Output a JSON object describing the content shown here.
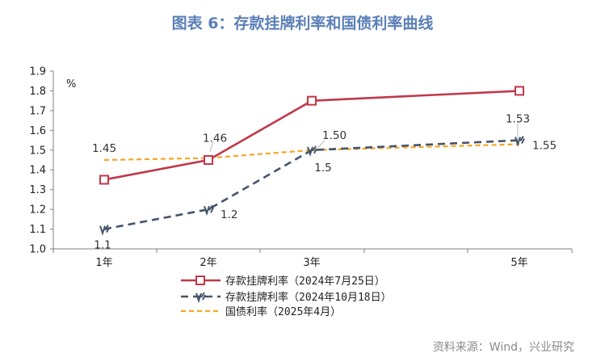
{
  "title": "图表 6：存款挂牌利率和国债利率曲线",
  "source": "资料来源：Wind，兴业研究",
  "colors": {
    "title": "#5b7fb6",
    "series_red": "#c0394b",
    "series_navy": "#44546a",
    "series_orange": "#f5a623"
  },
  "chart_data": {
    "type": "line",
    "unit_label": "%",
    "categories": [
      "1年",
      "2年",
      "3年",
      "5年"
    ],
    "x": [
      1,
      2,
      3,
      5
    ],
    "ylim": [
      1.0,
      1.9
    ],
    "yticks": [
      "1.0",
      "1.1",
      "1.2",
      "1.3",
      "1.4",
      "1.5",
      "1.6",
      "1.7",
      "1.8",
      "1.9"
    ],
    "grid": false,
    "legend_position": "bottom",
    "series": [
      {
        "name": "存款挂牌利率（2024年7月25日）",
        "values": [
          1.35,
          1.45,
          1.75,
          1.8
        ],
        "labels": []
      },
      {
        "name": "存款挂牌利率（2024年10月18日）",
        "values": [
          1.1,
          1.2,
          1.5,
          1.55
        ],
        "labels": [
          "1.1",
          "1.2",
          "1.5",
          "1.55"
        ]
      },
      {
        "name": "国债利率（2025年4月）",
        "values": [
          1.45,
          1.46,
          1.5,
          1.53
        ],
        "labels": [
          "1.45",
          "1.46",
          "1.50",
          "1.53"
        ]
      }
    ]
  }
}
